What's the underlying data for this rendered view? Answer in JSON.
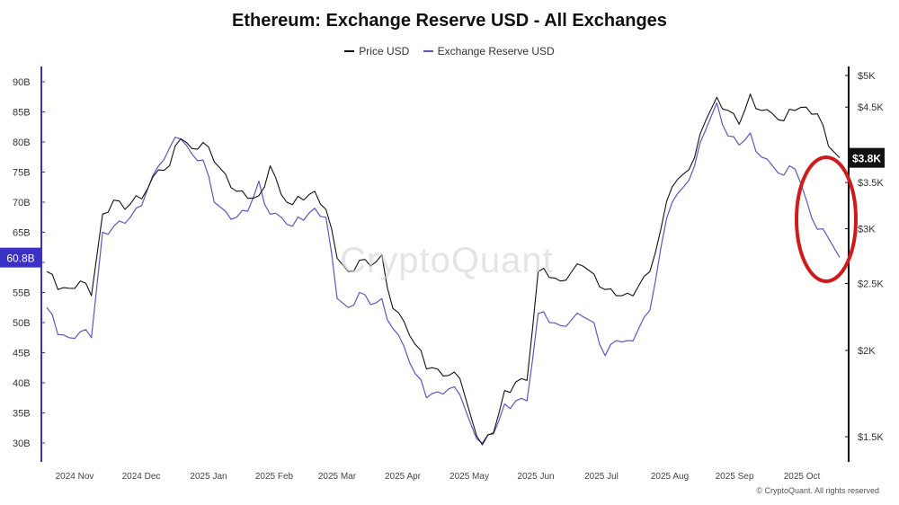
{
  "title": "Ethereum: Exchange Reserve USD - All Exchanges",
  "legend": {
    "price_label": "Price USD",
    "reserve_label": "Exchange Reserve USD",
    "price_color": "#111111",
    "reserve_color": "#5d55c8"
  },
  "watermark": "CryptoQuant",
  "copyright": "© CryptoQuant. All rights reserved",
  "annotation": {
    "shape": "ellipse",
    "color": "#d11b1b",
    "marks": "Oct 2025 reserve drop"
  },
  "chart_data": {
    "type": "line",
    "x_axis": {
      "tick_labels": [
        "2024 Nov",
        "2024 Dec",
        "2025 Jan",
        "2025 Feb",
        "2025 Mar",
        "2025 Apr",
        "2025 May",
        "2025 Jun",
        "2025 Jul",
        "2025 Aug",
        "2025 Sep",
        "2025 Oct"
      ]
    },
    "y_left": {
      "unit": "B",
      "range": [
        27,
        92
      ],
      "ticks": [
        "90B",
        "85B",
        "80B",
        "75B",
        "70B",
        "65B",
        "60B",
        "55B",
        "50B",
        "45B",
        "40B",
        "35B",
        "30B"
      ],
      "tick_values": [
        90,
        85,
        80,
        75,
        70,
        65,
        60,
        55,
        50,
        45,
        40,
        35,
        30
      ],
      "current_value_label": "60.8B",
      "current_value_color": "#3a31c4"
    },
    "y_right": {
      "scale": "log",
      "range": [
        1400,
        5000
      ],
      "ticks": [
        "$5K",
        "$4.5K",
        "$3.5K",
        "$3K",
        "$2.5K",
        "$2K",
        "$1.5K"
      ],
      "tick_values": [
        5000,
        4500,
        3500,
        3000,
        2500,
        2000,
        1500
      ],
      "current_value_label": "$3.8K",
      "current_value": 3800
    },
    "series": [
      {
        "name": "Price USD",
        "axis": "right",
        "color": "#111111",
        "t": [
          0,
          5,
          10,
          15,
          20,
          25,
          30,
          35,
          40,
          45,
          50,
          55,
          60,
          65,
          70,
          75,
          80,
          85,
          90,
          95,
          100,
          105,
          110,
          115,
          120,
          125,
          130,
          135,
          140,
          145,
          150,
          155,
          160,
          165,
          170,
          175,
          180,
          185,
          190,
          195,
          200,
          205,
          210,
          215,
          220,
          225,
          230,
          235,
          240,
          245,
          250,
          255,
          260,
          265,
          270,
          275,
          280,
          285,
          290,
          295,
          300,
          305,
          310,
          315,
          320,
          325,
          330,
          335,
          340,
          345,
          350,
          355
        ],
        "values": [
          2600,
          2450,
          2460,
          2520,
          2400,
          3150,
          3300,
          3200,
          3350,
          3420,
          3650,
          3700,
          4050,
          3920,
          4000,
          3750,
          3600,
          3400,
          3320,
          3350,
          3700,
          3360,
          3250,
          3300,
          3400,
          3200,
          2720,
          2600,
          2700,
          2650,
          2750,
          2300,
          2200,
          2040,
          1880,
          1880,
          1840,
          1820,
          1600,
          1460,
          1520,
          1750,
          1800,
          1810,
          2600,
          2550,
          2520,
          2600,
          2650,
          2580,
          2450,
          2400,
          2420,
          2480,
          2600,
          3000,
          3450,
          3600,
          3800,
          4300,
          4650,
          4450,
          4250,
          4700,
          4450,
          4400,
          4300,
          4450,
          4500,
          4400,
          3950,
          3800
        ]
      },
      {
        "name": "Exchange Reserve USD",
        "axis": "left",
        "color": "#5d55c8",
        "t": [
          0,
          5,
          10,
          15,
          20,
          25,
          30,
          35,
          40,
          45,
          50,
          55,
          60,
          65,
          70,
          75,
          80,
          85,
          90,
          95,
          100,
          105,
          110,
          115,
          120,
          125,
          130,
          135,
          140,
          145,
          150,
          155,
          160,
          165,
          170,
          175,
          180,
          185,
          190,
          195,
          200,
          205,
          210,
          215,
          220,
          225,
          230,
          235,
          240,
          245,
          250,
          255,
          260,
          265,
          270,
          275,
          280,
          285,
          290,
          295,
          300,
          305,
          310,
          315,
          320,
          325,
          330,
          335,
          340,
          345,
          350,
          355
        ],
        "values": [
          52.5,
          48.0,
          47.5,
          48.5,
          47.5,
          65.0,
          66.0,
          66.5,
          69.0,
          72.0,
          76.0,
          79.0,
          80.5,
          78.0,
          77.0,
          70.0,
          68.5,
          67.5,
          68.5,
          73.5,
          68.0,
          67.5,
          66.0,
          67.0,
          69.0,
          67.5,
          54.0,
          52.5,
          55.0,
          53.0,
          54.0,
          49.0,
          46.0,
          41.5,
          37.5,
          38.5,
          39.0,
          38.0,
          33.0,
          30.0,
          31.5,
          36.5,
          37.0,
          37.0,
          51.5,
          50.0,
          49.5,
          50.5,
          51.0,
          50.0,
          44.5,
          47.0,
          47.0,
          49.0,
          52.0,
          62.5,
          70.0,
          72.5,
          76.0,
          82.0,
          86.5,
          81.0,
          79.5,
          81.5,
          77.5,
          76.0,
          74.5,
          75.5,
          70.5,
          65.5,
          64.0,
          60.8
        ]
      }
    ],
    "grid": false,
    "legend_position": "top-center"
  }
}
